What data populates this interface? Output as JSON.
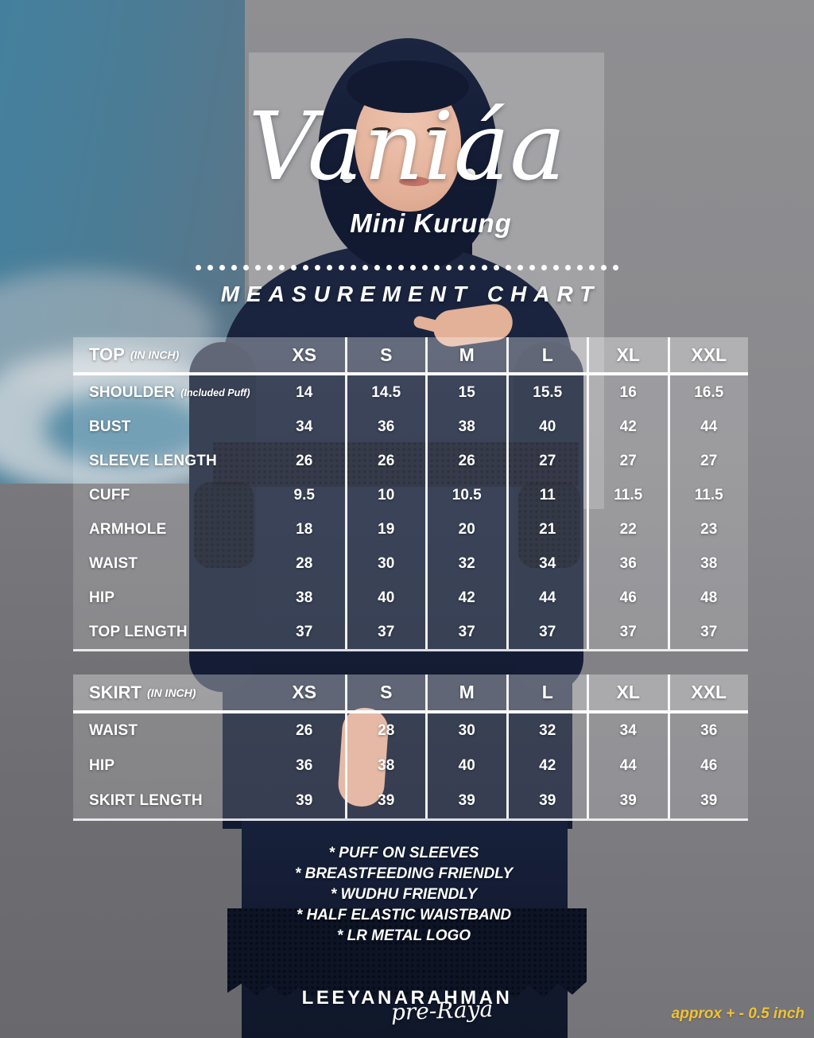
{
  "poster": {
    "brand_script": "Vaniáa",
    "product": "Mini Kurung",
    "section_title": "MEASUREMENT CHART",
    "features": [
      "* PUFF ON SLEEVES",
      "* BREASTFEEDING FRIENDLY",
      "* WUDHU FRIENDLY",
      "* HALF ELASTIC WAISTBAND",
      "* LR METAL LOGO"
    ],
    "footer_brand": "LEEYANARAHMAN",
    "footer_campaign": "pre-Raya",
    "disclaimer": "approx + - 0.5 inch"
  },
  "colors": {
    "accent_yellow": "#F2C233",
    "dress_navy": "#141C33",
    "sky_blue": "#4B7D96",
    "backdrop_gray": "#8A8A8E"
  },
  "chart_data": [
    {
      "type": "table",
      "title": "TOP",
      "unit": "(IN INCH)",
      "columns": [
        "XS",
        "S",
        "M",
        "L",
        "XL",
        "XXL"
      ],
      "rows": [
        {
          "label": "SHOULDER",
          "note": "(Included Puff)",
          "values": [
            "14",
            "14.5",
            "15",
            "15.5",
            "16",
            "16.5"
          ]
        },
        {
          "label": "BUST",
          "values": [
            "34",
            "36",
            "38",
            "40",
            "42",
            "44"
          ]
        },
        {
          "label": "SLEEVE LENGTH",
          "values": [
            "26",
            "26",
            "26",
            "27",
            "27",
            "27"
          ]
        },
        {
          "label": "CUFF",
          "values": [
            "9.5",
            "10",
            "10.5",
            "11",
            "11.5",
            "11.5"
          ]
        },
        {
          "label": "ARMHOLE",
          "values": [
            "18",
            "19",
            "20",
            "21",
            "22",
            "23"
          ]
        },
        {
          "label": "WAIST",
          "values": [
            "28",
            "30",
            "32",
            "34",
            "36",
            "38"
          ]
        },
        {
          "label": "HIP",
          "values": [
            "38",
            "40",
            "42",
            "44",
            "46",
            "48"
          ]
        },
        {
          "label": "TOP LENGTH",
          "values": [
            "37",
            "37",
            "37",
            "37",
            "37",
            "37"
          ]
        }
      ]
    },
    {
      "type": "table",
      "title": "SKIRT",
      "unit": "(IN INCH)",
      "columns": [
        "XS",
        "S",
        "M",
        "L",
        "XL",
        "XXL"
      ],
      "rows": [
        {
          "label": "WAIST",
          "values": [
            "26",
            "28",
            "30",
            "32",
            "34",
            "36"
          ]
        },
        {
          "label": "HIP",
          "values": [
            "36",
            "38",
            "40",
            "42",
            "44",
            "46"
          ]
        },
        {
          "label": "SKIRT LENGTH",
          "values": [
            "39",
            "39",
            "39",
            "39",
            "39",
            "39"
          ]
        }
      ]
    }
  ]
}
